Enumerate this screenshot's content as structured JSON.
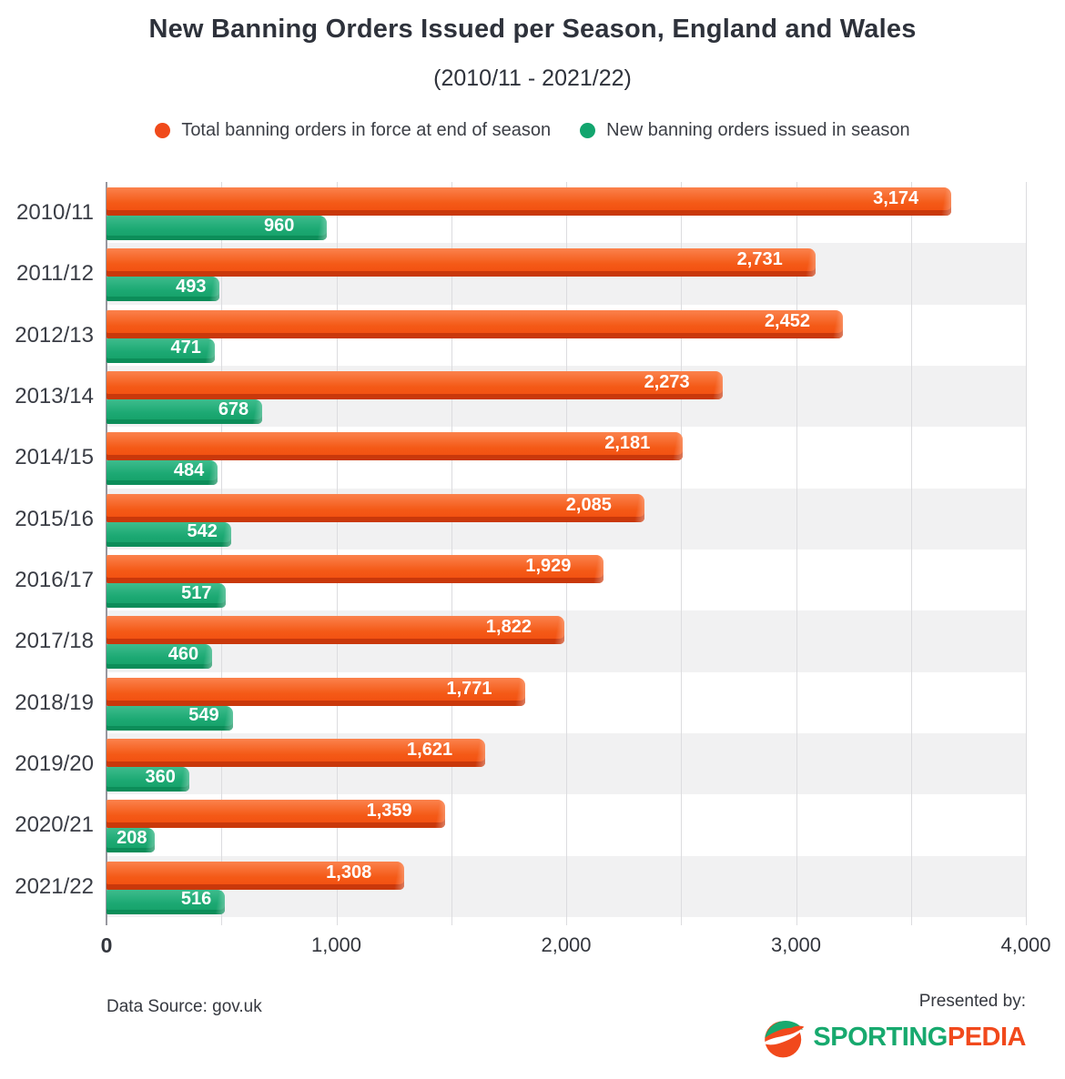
{
  "header": {
    "title": "New Banning Orders Issued per Season, England and Wales",
    "subtitle": "(2010/11 - 2021/22)"
  },
  "legend": {
    "items": [
      {
        "label": "Total banning orders in force at end of season",
        "color": "#f04a1b",
        "series": "total"
      },
      {
        "label": "New banning orders issued in season",
        "color": "#12a56e",
        "series": "new"
      }
    ]
  },
  "chart_data": {
    "type": "bar",
    "orientation": "horizontal",
    "title": "New Banning Orders Issued per Season, England and Wales (2010/11 - 2021/22)",
    "categories": [
      "2010/11",
      "2011/12",
      "2012/13",
      "2013/14",
      "2014/15",
      "2015/16",
      "2016/17",
      "2017/18",
      "2018/19",
      "2019/20",
      "2020/21",
      "2021/22"
    ],
    "series": [
      {
        "name": "Total banning orders in force at end of season",
        "color": "#f04a1b",
        "values": [
          3174,
          2731,
          2452,
          2273,
          2181,
          2085,
          1929,
          1822,
          1771,
          1621,
          1359,
          1308
        ],
        "value_labels": [
          "3,174",
          "2,731",
          "2,452",
          "2,273",
          "2,181",
          "2,085",
          "1,929",
          "1,822",
          "1,771",
          "1,621",
          "1,359",
          "1,308"
        ]
      },
      {
        "name": "New banning orders issued in season",
        "color": "#12a56e",
        "values": [
          960,
          493,
          471,
          678,
          484,
          542,
          517,
          460,
          549,
          360,
          208,
          516
        ],
        "value_labels": [
          "960",
          "493",
          "471",
          "678",
          "484",
          "542",
          "517",
          "460",
          "549",
          "360",
          "208",
          "516"
        ]
      }
    ],
    "xlim": [
      0,
      4000
    ],
    "x_tick_labels": [
      "0",
      "1,000",
      "2,000",
      "3,000",
      "4,000"
    ],
    "gridline_step": 500,
    "grid": true,
    "legend_position": "top",
    "row_shading": "alternate",
    "layout_hints": {
      "total_bar_display_pct": [
        91.9,
        77.1,
        80.1,
        67.0,
        62.7,
        58.5,
        54.1,
        49.8,
        45.5,
        41.2,
        36.8,
        32.4
      ],
      "note": "orange bar pixel lengths in the source graphic are slightly longer than value-proportional"
    }
  },
  "footer": {
    "data_source": "Data Source: gov.uk",
    "presented_by": "Presented by:",
    "brand": {
      "part1": "SPORTING",
      "part2": "PEDIA",
      "part1_color": "#17a96e",
      "part2_color": "#f1491c"
    }
  }
}
